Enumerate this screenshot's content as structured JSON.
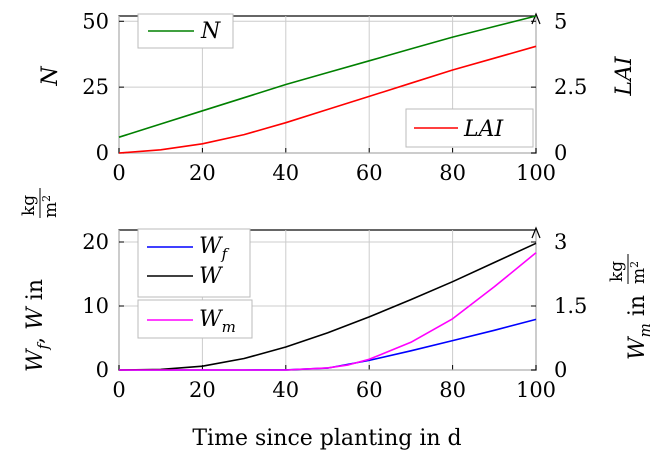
{
  "chart_data": [
    {
      "type": "line",
      "xlim": [
        0,
        100
      ],
      "xticks": [
        0,
        20,
        40,
        60,
        80,
        100
      ],
      "ylabel_left": "N",
      "ylabel_right": "LAI",
      "ylim_left": [
        0,
        52
      ],
      "yticks_left": [
        0,
        25,
        50
      ],
      "ylim_right": [
        0,
        5.2
      ],
      "yticks_right": [
        "0",
        "2.5",
        "5"
      ],
      "grid": true,
      "legends": [
        "top-left",
        "bottom-right"
      ],
      "series": [
        {
          "name": "N",
          "axis": "left",
          "color": "#008000",
          "x": [
            0,
            10,
            20,
            30,
            40,
            50,
            60,
            70,
            80,
            90,
            100
          ],
          "y": [
            6,
            11,
            16,
            21,
            26,
            30.5,
            35,
            39.5,
            44,
            48,
            52
          ]
        },
        {
          "name": "LAI",
          "axis": "right",
          "color": "#ff0000",
          "x": [
            0,
            10,
            20,
            30,
            40,
            50,
            60,
            70,
            80,
            90,
            100
          ],
          "y": [
            0,
            0.12,
            0.35,
            0.7,
            1.15,
            1.65,
            2.15,
            2.65,
            3.15,
            3.6,
            4.05
          ]
        }
      ]
    },
    {
      "type": "line",
      "xlim": [
        0,
        100
      ],
      "xticks": [
        0,
        20,
        40,
        60,
        80,
        100
      ],
      "xlabel": "Time since planting in d",
      "ylim_left": [
        0,
        20
      ],
      "yticks_left": [
        0,
        10,
        20
      ],
      "ylim_right": [
        0,
        3
      ],
      "yticks_right": [
        "0",
        "1.5",
        "3"
      ],
      "ylabel_unit": "kg/m2",
      "grid": true,
      "legends": [
        "top-left",
        "middle-left"
      ],
      "series": [
        {
          "name": "W_f",
          "axis": "left",
          "color": "#0000ff",
          "x": [
            0,
            10,
            20,
            30,
            40,
            50,
            60,
            70,
            80,
            90,
            100
          ],
          "y": [
            0,
            0,
            0,
            0,
            0.02,
            0.3,
            1.5,
            3,
            4.6,
            6.2,
            7.9
          ]
        },
        {
          "name": "W",
          "axis": "left",
          "color": "#000000",
          "x": [
            0,
            10,
            20,
            30,
            40,
            50,
            60,
            70,
            80,
            90,
            100
          ],
          "y": [
            0,
            0.1,
            0.6,
            1.8,
            3.6,
            5.8,
            8.3,
            11,
            13.8,
            16.8,
            19.8
          ]
        },
        {
          "name": "W_m",
          "axis": "right",
          "color": "#ff00ff",
          "x": [
            0,
            10,
            20,
            30,
            40,
            50,
            55,
            60,
            70,
            80,
            90,
            100
          ],
          "y": [
            0,
            0,
            0,
            0,
            0,
            0.05,
            0.12,
            0.25,
            0.65,
            1.2,
            1.95,
            2.75
          ]
        }
      ]
    }
  ]
}
